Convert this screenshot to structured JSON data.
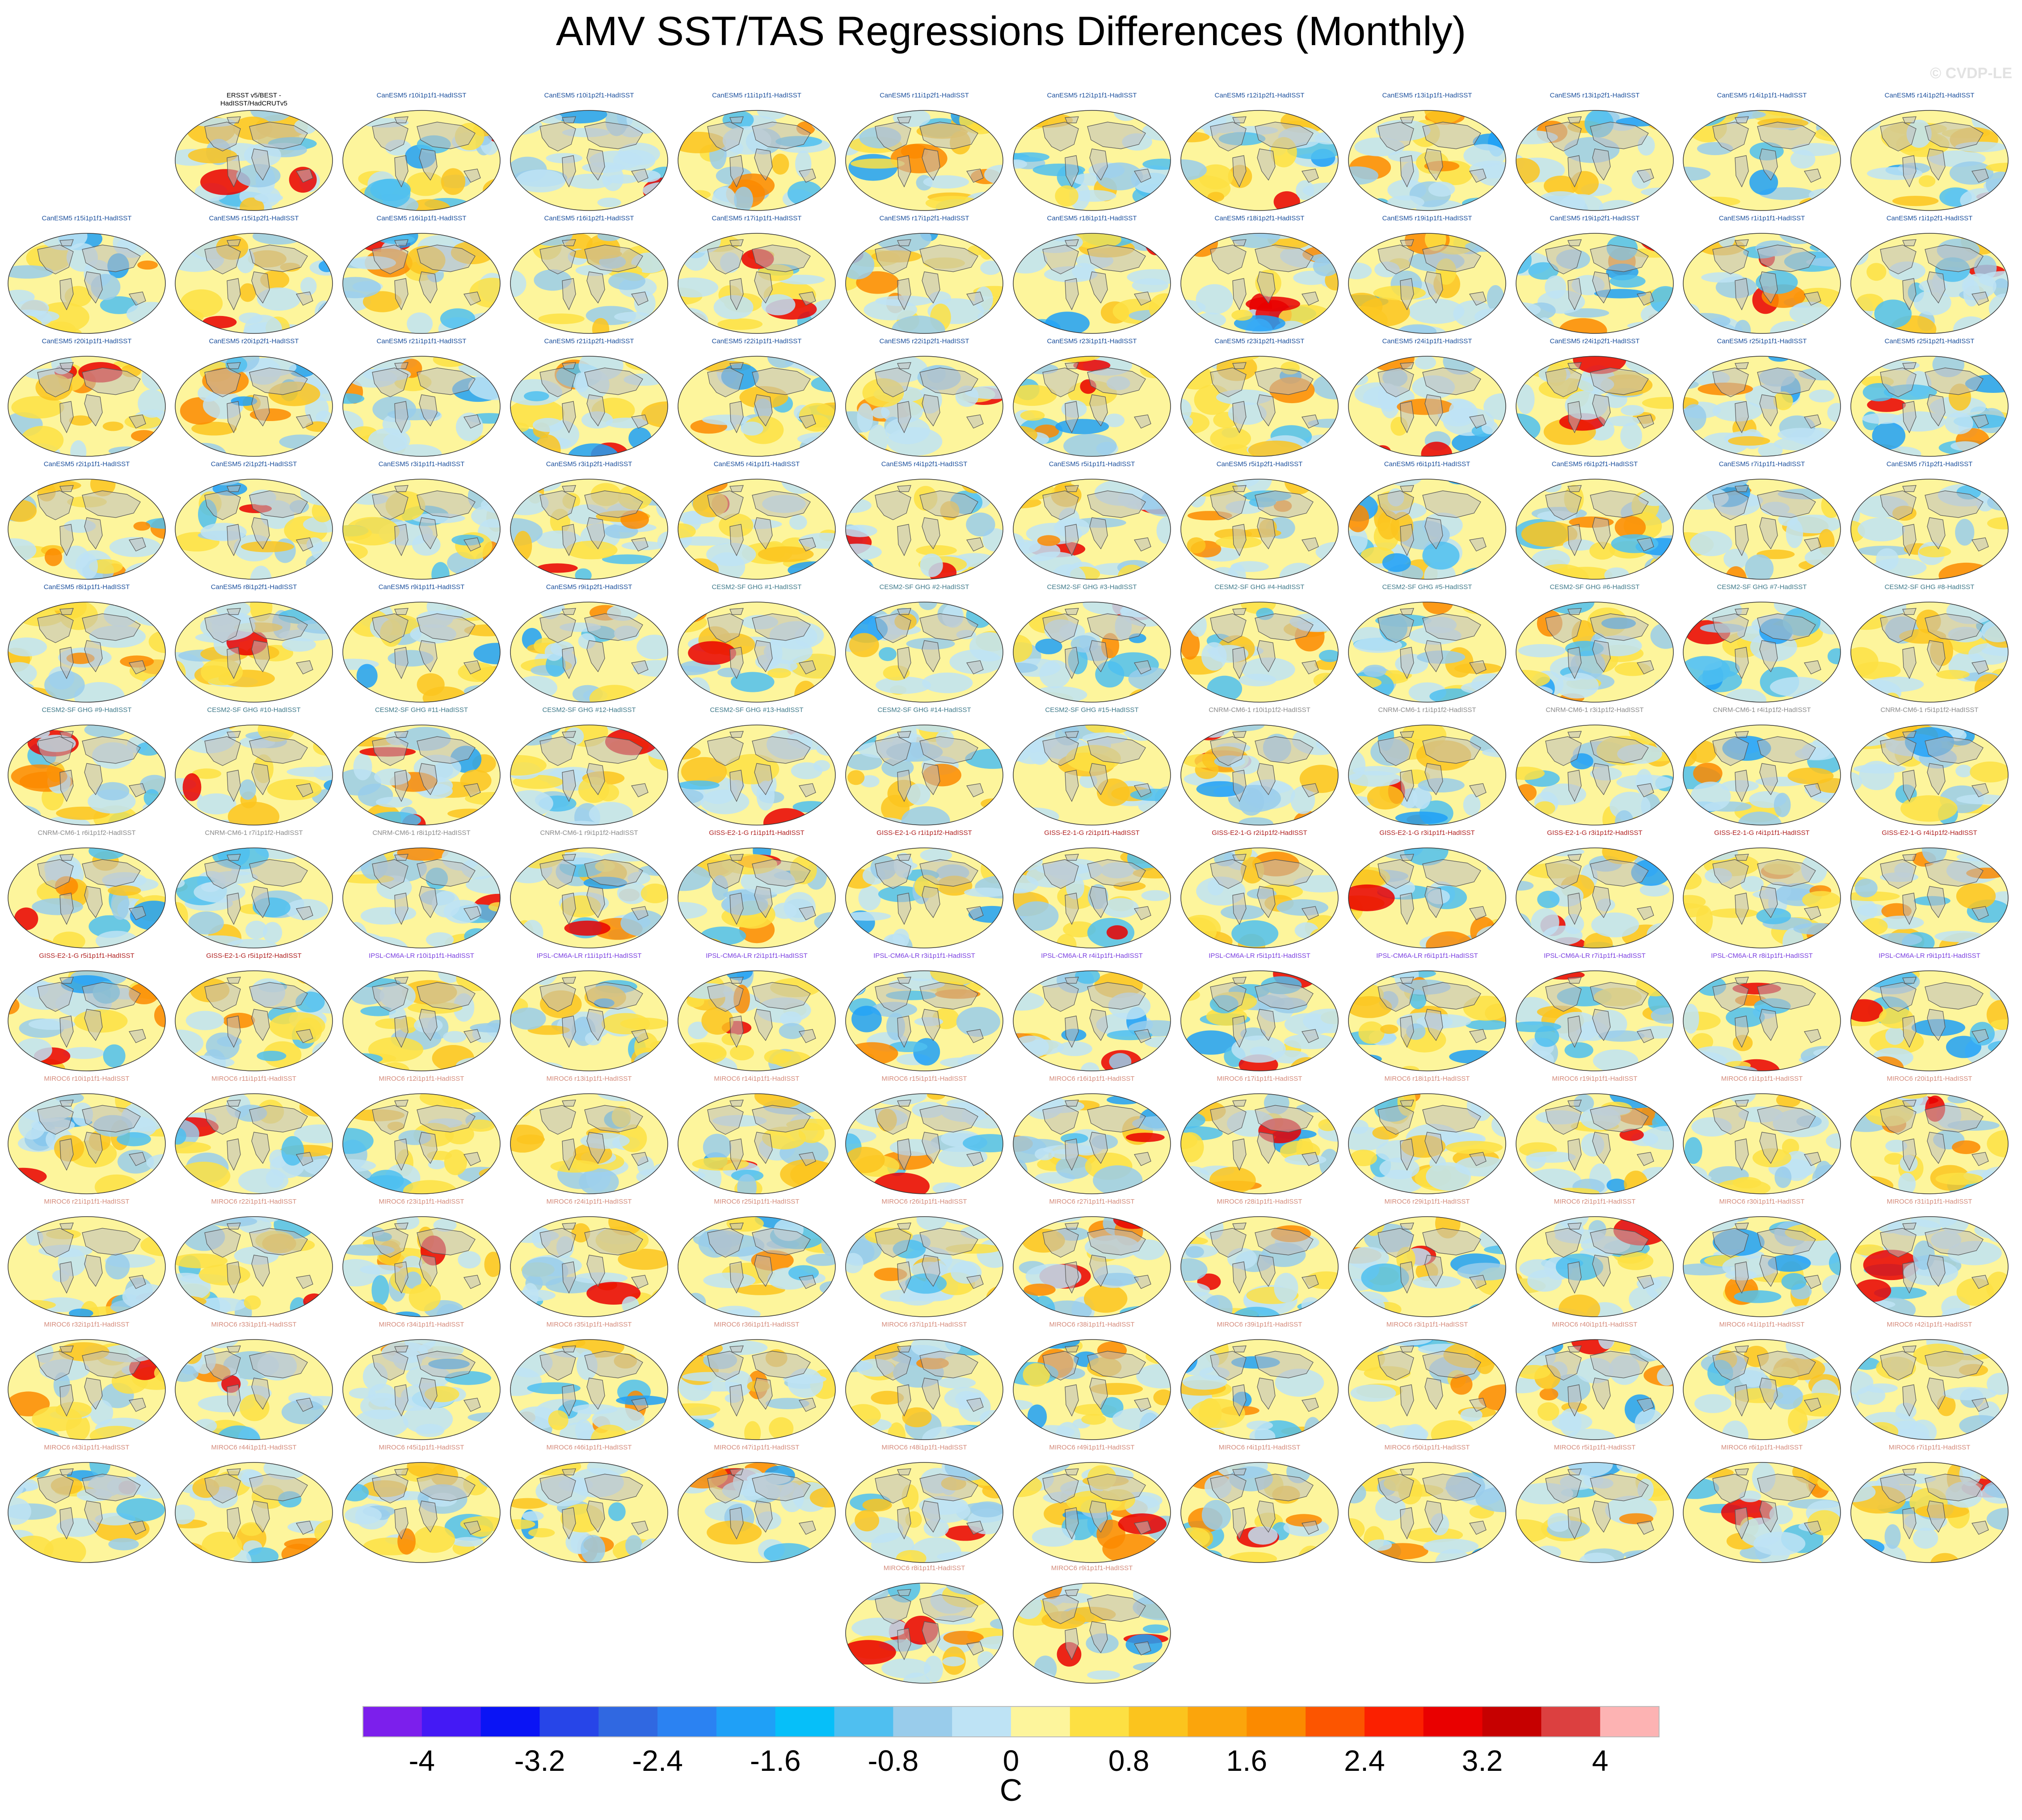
{
  "title": "AMV SST/TAS Regressions Differences (Monthly)",
  "watermark": "© CVDP-LE",
  "units": "C",
  "colorbar": {
    "colors": [
      "#7c1fec",
      "#4419f5",
      "#0a14f5",
      "#2745e8",
      "#3068e1",
      "#2b82f2",
      "#1fa0f7",
      "#06bff9",
      "#4fbff0",
      "#99cceb",
      "#bee3f5",
      "#fdf59c",
      "#fde043",
      "#fbc41e",
      "#fba50c",
      "#fb8a00",
      "#fc5500",
      "#fb2000",
      "#e90000",
      "#c60000",
      "#dc4040",
      "#fdb3b3"
    ],
    "tick_labels": [
      "-4",
      "-3.2",
      "-2.4",
      "-1.6",
      "-0.8",
      "0",
      "0.8",
      "1.6",
      "2.4",
      "3.2",
      "4"
    ]
  },
  "chart_data": {
    "type": "heatmap",
    "title": "AMV SST/TAS Regressions Differences (Monthly)",
    "units": "C",
    "color_levels": [
      -4.4,
      -4,
      -3.6,
      -3.2,
      -2.8,
      -2.4,
      -2,
      -1.6,
      -1.2,
      -0.8,
      -0.4,
      0,
      0.4,
      0.8,
      1.2,
      1.6,
      2,
      2.4,
      2.8,
      3.2,
      3.6,
      4,
      4.4
    ],
    "panels": [
      {
        "label": "ERSST v5/BEST -\nHadISST/HadCRUTv5",
        "group": "obs"
      },
      {
        "label": "CanESM5 r10i1p1f1-HadISST",
        "group": "CanESM5"
      },
      {
        "label": "CanESM5 r10i1p2f1-HadISST",
        "group": "CanESM5"
      },
      {
        "label": "CanESM5 r11i1p1f1-HadISST",
        "group": "CanESM5"
      },
      {
        "label": "CanESM5 r11i1p2f1-HadISST",
        "group": "CanESM5"
      },
      {
        "label": "CanESM5 r12i1p1f1-HadISST",
        "group": "CanESM5"
      },
      {
        "label": "CanESM5 r12i1p2f1-HadISST",
        "group": "CanESM5"
      },
      {
        "label": "CanESM5 r13i1p1f1-HadISST",
        "group": "CanESM5"
      },
      {
        "label": "CanESM5 r13i1p2f1-HadISST",
        "group": "CanESM5"
      },
      {
        "label": "CanESM5 r14i1p1f1-HadISST",
        "group": "CanESM5"
      },
      {
        "label": "CanESM5 r14i1p2f1-HadISST",
        "group": "CanESM5"
      },
      {
        "label": "CanESM5 r15i1p1f1-HadISST",
        "group": "CanESM5"
      },
      {
        "label": "CanESM5 r15i1p2f1-HadISST",
        "group": "CanESM5"
      },
      {
        "label": "CanESM5 r16i1p1f1-HadISST",
        "group": "CanESM5"
      },
      {
        "label": "CanESM5 r16i1p2f1-HadISST",
        "group": "CanESM5"
      },
      {
        "label": "CanESM5 r17i1p1f1-HadISST",
        "group": "CanESM5"
      },
      {
        "label": "CanESM5 r17i1p2f1-HadISST",
        "group": "CanESM5"
      },
      {
        "label": "CanESM5 r18i1p1f1-HadISST",
        "group": "CanESM5"
      },
      {
        "label": "CanESM5 r18i1p2f1-HadISST",
        "group": "CanESM5"
      },
      {
        "label": "CanESM5 r19i1p1f1-HadISST",
        "group": "CanESM5"
      },
      {
        "label": "CanESM5 r19i1p2f1-HadISST",
        "group": "CanESM5"
      },
      {
        "label": "CanESM5 r1i1p1f1-HadISST",
        "group": "CanESM5"
      },
      {
        "label": "CanESM5 r1i1p2f1-HadISST",
        "group": "CanESM5"
      },
      {
        "label": "CanESM5 r20i1p1f1-HadISST",
        "group": "CanESM5"
      },
      {
        "label": "CanESM5 r20i1p2f1-HadISST",
        "group": "CanESM5"
      },
      {
        "label": "CanESM5 r21i1p1f1-HadISST",
        "group": "CanESM5"
      },
      {
        "label": "CanESM5 r21i1p2f1-HadISST",
        "group": "CanESM5"
      },
      {
        "label": "CanESM5 r22i1p1f1-HadISST",
        "group": "CanESM5"
      },
      {
        "label": "CanESM5 r22i1p2f1-HadISST",
        "group": "CanESM5"
      },
      {
        "label": "CanESM5 r23i1p1f1-HadISST",
        "group": "CanESM5"
      },
      {
        "label": "CanESM5 r23i1p2f1-HadISST",
        "group": "CanESM5"
      },
      {
        "label": "CanESM5 r24i1p1f1-HadISST",
        "group": "CanESM5"
      },
      {
        "label": "CanESM5 r24i1p2f1-HadISST",
        "group": "CanESM5"
      },
      {
        "label": "CanESM5 r25i1p1f1-HadISST",
        "group": "CanESM5"
      },
      {
        "label": "CanESM5 r25i1p2f1-HadISST",
        "group": "CanESM5"
      },
      {
        "label": "CanESM5 r2i1p1f1-HadISST",
        "group": "CanESM5"
      },
      {
        "label": "CanESM5 r2i1p2f1-HadISST",
        "group": "CanESM5"
      },
      {
        "label": "CanESM5 r3i1p1f1-HadISST",
        "group": "CanESM5"
      },
      {
        "label": "CanESM5 r3i1p2f1-HadISST",
        "group": "CanESM5"
      },
      {
        "label": "CanESM5 r4i1p1f1-HadISST",
        "group": "CanESM5"
      },
      {
        "label": "CanESM5 r4i1p2f1-HadISST",
        "group": "CanESM5"
      },
      {
        "label": "CanESM5 r5i1p1f1-HadISST",
        "group": "CanESM5"
      },
      {
        "label": "CanESM5 r5i1p2f1-HadISST",
        "group": "CanESM5"
      },
      {
        "label": "CanESM5 r6i1p1f1-HadISST",
        "group": "CanESM5"
      },
      {
        "label": "CanESM5 r6i1p2f1-HadISST",
        "group": "CanESM5"
      },
      {
        "label": "CanESM5 r7i1p1f1-HadISST",
        "group": "CanESM5"
      },
      {
        "label": "CanESM5 r7i1p2f1-HadISST",
        "group": "CanESM5"
      },
      {
        "label": "CanESM5 r8i1p1f1-HadISST",
        "group": "CanESM5"
      },
      {
        "label": "CanESM5 r8i1p2f1-HadISST",
        "group": "CanESM5"
      },
      {
        "label": "CanESM5 r9i1p1f1-HadISST",
        "group": "CanESM5"
      },
      {
        "label": "CanESM5 r9i1p2f1-HadISST",
        "group": "CanESM5"
      },
      {
        "label": "CESM2-SF GHG #1-HadISST",
        "group": "CESM2"
      },
      {
        "label": "CESM2-SF GHG #2-HadISST",
        "group": "CESM2"
      },
      {
        "label": "CESM2-SF GHG #3-HadISST",
        "group": "CESM2"
      },
      {
        "label": "CESM2-SF GHG #4-HadISST",
        "group": "CESM2"
      },
      {
        "label": "CESM2-SF GHG #5-HadISST",
        "group": "CESM2"
      },
      {
        "label": "CESM2-SF GHG #6-HadISST",
        "group": "CESM2"
      },
      {
        "label": "CESM2-SF GHG #7-HadISST",
        "group": "CESM2"
      },
      {
        "label": "CESM2-SF GHG #8-HadISST",
        "group": "CESM2"
      },
      {
        "label": "CESM2-SF GHG #9-HadISST",
        "group": "CESM2"
      },
      {
        "label": "CESM2-SF GHG #10-HadISST",
        "group": "CESM2"
      },
      {
        "label": "CESM2-SF GHG #11-HadISST",
        "group": "CESM2"
      },
      {
        "label": "CESM2-SF GHG #12-HadISST",
        "group": "CESM2"
      },
      {
        "label": "CESM2-SF GHG #13-HadISST",
        "group": "CESM2"
      },
      {
        "label": "CESM2-SF GHG #14-HadISST",
        "group": "CESM2"
      },
      {
        "label": "CESM2-SF GHG #15-HadISST",
        "group": "CESM2"
      },
      {
        "label": "CNRM-CM6-1 r10i1p1f2-HadISST",
        "group": "CNRM"
      },
      {
        "label": "CNRM-CM6-1 r1i1p1f2-HadISST",
        "group": "CNRM"
      },
      {
        "label": "CNRM-CM6-1 r3i1p1f2-HadISST",
        "group": "CNRM"
      },
      {
        "label": "CNRM-CM6-1 r4i1p1f2-HadISST",
        "group": "CNRM"
      },
      {
        "label": "CNRM-CM6-1 r5i1p1f2-HadISST",
        "group": "CNRM"
      },
      {
        "label": "CNRM-CM6-1 r6i1p1f2-HadISST",
        "group": "CNRM"
      },
      {
        "label": "CNRM-CM6-1 r7i1p1f2-HadISST",
        "group": "CNRM"
      },
      {
        "label": "CNRM-CM6-1 r8i1p1f2-HadISST",
        "group": "CNRM"
      },
      {
        "label": "CNRM-CM6-1 r9i1p1f2-HadISST",
        "group": "CNRM"
      },
      {
        "label": "GISS-E2-1-G r1i1p1f1-HadISST",
        "group": "GISS"
      },
      {
        "label": "GISS-E2-1-G r1i1p1f2-HadISST",
        "group": "GISS"
      },
      {
        "label": "GISS-E2-1-G r2i1p1f1-HadISST",
        "group": "GISS"
      },
      {
        "label": "GISS-E2-1-G r2i1p1f2-HadISST",
        "group": "GISS"
      },
      {
        "label": "GISS-E2-1-G r3i1p1f1-HadISST",
        "group": "GISS"
      },
      {
        "label": "GISS-E2-1-G r3i1p1f2-HadISST",
        "group": "GISS"
      },
      {
        "label": "GISS-E2-1-G r4i1p1f1-HadISST",
        "group": "GISS"
      },
      {
        "label": "GISS-E2-1-G r4i1p1f2-HadISST",
        "group": "GISS"
      },
      {
        "label": "GISS-E2-1-G r5i1p1f1-HadISST",
        "group": "GISS"
      },
      {
        "label": "GISS-E2-1-G r5i1p1f2-HadISST",
        "group": "GISS"
      },
      {
        "label": "IPSL-CM6A-LR r10i1p1f1-HadISST",
        "group": "IPSL"
      },
      {
        "label": "IPSL-CM6A-LR r11i1p1f1-HadISST",
        "group": "IPSL"
      },
      {
        "label": "IPSL-CM6A-LR r2i1p1f1-HadISST",
        "group": "IPSL"
      },
      {
        "label": "IPSL-CM6A-LR r3i1p1f1-HadISST",
        "group": "IPSL"
      },
      {
        "label": "IPSL-CM6A-LR r4i1p1f1-HadISST",
        "group": "IPSL"
      },
      {
        "label": "IPSL-CM6A-LR r5i1p1f1-HadISST",
        "group": "IPSL"
      },
      {
        "label": "IPSL-CM6A-LR r6i1p1f1-HadISST",
        "group": "IPSL"
      },
      {
        "label": "IPSL-CM6A-LR r7i1p1f1-HadISST",
        "group": "IPSL"
      },
      {
        "label": "IPSL-CM6A-LR r8i1p1f1-HadISST",
        "group": "IPSL"
      },
      {
        "label": "IPSL-CM6A-LR r9i1p1f1-HadISST",
        "group": "IPSL"
      },
      {
        "label": "MIROC6 r10i1p1f1-HadISST",
        "group": "MIROC6"
      },
      {
        "label": "MIROC6 r11i1p1f1-HadISST",
        "group": "MIROC6"
      },
      {
        "label": "MIROC6 r12i1p1f1-HadISST",
        "group": "MIROC6"
      },
      {
        "label": "MIROC6 r13i1p1f1-HadISST",
        "group": "MIROC6"
      },
      {
        "label": "MIROC6 r14i1p1f1-HadISST",
        "group": "MIROC6"
      },
      {
        "label": "MIROC6 r15i1p1f1-HadISST",
        "group": "MIROC6"
      },
      {
        "label": "MIROC6 r16i1p1f1-HadISST",
        "group": "MIROC6"
      },
      {
        "label": "MIROC6 r17i1p1f1-HadISST",
        "group": "MIROC6"
      },
      {
        "label": "MIROC6 r18i1p1f1-HadISST",
        "group": "MIROC6"
      },
      {
        "label": "MIROC6 r19i1p1f1-HadISST",
        "group": "MIROC6"
      },
      {
        "label": "MIROC6 r1i1p1f1-HadISST",
        "group": "MIROC6"
      },
      {
        "label": "MIROC6 r20i1p1f1-HadISST",
        "group": "MIROC6"
      },
      {
        "label": "MIROC6 r21i1p1f1-HadISST",
        "group": "MIROC6"
      },
      {
        "label": "MIROC6 r22i1p1f1-HadISST",
        "group": "MIROC6"
      },
      {
        "label": "MIROC6 r23i1p1f1-HadISST",
        "group": "MIROC6"
      },
      {
        "label": "MIROC6 r24i1p1f1-HadISST",
        "group": "MIROC6"
      },
      {
        "label": "MIROC6 r25i1p1f1-HadISST",
        "group": "MIROC6"
      },
      {
        "label": "MIROC6 r26i1p1f1-HadISST",
        "group": "MIROC6"
      },
      {
        "label": "MIROC6 r27i1p1f1-HadISST",
        "group": "MIROC6"
      },
      {
        "label": "MIROC6 r28i1p1f1-HadISST",
        "group": "MIROC6"
      },
      {
        "label": "MIROC6 r29i1p1f1-HadISST",
        "group": "MIROC6"
      },
      {
        "label": "MIROC6 r2i1p1f1-HadISST",
        "group": "MIROC6"
      },
      {
        "label": "MIROC6 r30i1p1f1-HadISST",
        "group": "MIROC6"
      },
      {
        "label": "MIROC6 r31i1p1f1-HadISST",
        "group": "MIROC6"
      },
      {
        "label": "MIROC6 r32i1p1f1-HadISST",
        "group": "MIROC6"
      },
      {
        "label": "MIROC6 r33i1p1f1-HadISST",
        "group": "MIROC6"
      },
      {
        "label": "MIROC6 r34i1p1f1-HadISST",
        "group": "MIROC6"
      },
      {
        "label": "MIROC6 r35i1p1f1-HadISST",
        "group": "MIROC6"
      },
      {
        "label": "MIROC6 r36i1p1f1-HadISST",
        "group": "MIROC6"
      },
      {
        "label": "MIROC6 r37i1p1f1-HadISST",
        "group": "MIROC6"
      },
      {
        "label": "MIROC6 r38i1p1f1-HadISST",
        "group": "MIROC6"
      },
      {
        "label": "MIROC6 r39i1p1f1-HadISST",
        "group": "MIROC6"
      },
      {
        "label": "MIROC6 r3i1p1f1-HadISST",
        "group": "MIROC6"
      },
      {
        "label": "MIROC6 r40i1p1f1-HadISST",
        "group": "MIROC6"
      },
      {
        "label": "MIROC6 r41i1p1f1-HadISST",
        "group": "MIROC6"
      },
      {
        "label": "MIROC6 r42i1p1f1-HadISST",
        "group": "MIROC6"
      },
      {
        "label": "MIROC6 r43i1p1f1-HadISST",
        "group": "MIROC6"
      },
      {
        "label": "MIROC6 r44i1p1f1-HadISST",
        "group": "MIROC6"
      },
      {
        "label": "MIROC6 r45i1p1f1-HadISST",
        "group": "MIROC6"
      },
      {
        "label": "MIROC6 r46i1p1f1-HadISST",
        "group": "MIROC6"
      },
      {
        "label": "MIROC6 r47i1p1f1-HadISST",
        "group": "MIROC6"
      },
      {
        "label": "MIROC6 r48i1p1f1-HadISST",
        "group": "MIROC6"
      },
      {
        "label": "MIROC6 r49i1p1f1-HadISST",
        "group": "MIROC6"
      },
      {
        "label": "MIROC6 r4i1p1f1-HadISST",
        "group": "MIROC6"
      },
      {
        "label": "MIROC6 r50i1p1f1-HadISST",
        "group": "MIROC6"
      },
      {
        "label": "MIROC6 r5i1p1f1-HadISST",
        "group": "MIROC6"
      },
      {
        "label": "MIROC6 r6i1p1f1-HadISST",
        "group": "MIROC6"
      },
      {
        "label": "MIROC6 r7i1p1f1-HadISST",
        "group": "MIROC6"
      },
      {
        "label": "MIROC6 r8i1p1f1-HadISST",
        "group": "MIROC6"
      },
      {
        "label": "MIROC6 r9i1p1f1-HadISST",
        "group": "MIROC6"
      }
    ]
  },
  "label_colors": {
    "obs": "#000000",
    "CanESM5": "#1b4f9c",
    "CESM2": "#3f7a8a",
    "CNRM": "#8a8a8a",
    "GISS": "#b02020",
    "IPSL": "#7a3fe0",
    "MIROC6": "#d48a7a"
  }
}
